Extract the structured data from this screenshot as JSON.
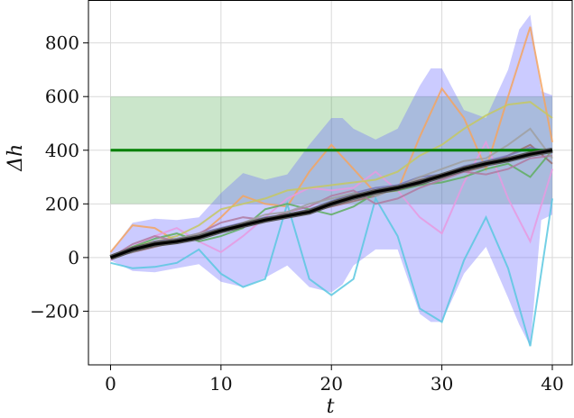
{
  "chart_data": {
    "type": "line",
    "xlabel": "t",
    "ylabel": "Δh",
    "xlim": [
      -2,
      41.8
    ],
    "ylim": [
      -400,
      960
    ],
    "x_ticks": [
      0,
      10,
      20,
      30,
      40
    ],
    "x_tick_labels": [
      "0",
      "10",
      "20",
      "30",
      "40"
    ],
    "y_ticks": [
      -200,
      0,
      200,
      400,
      600,
      800
    ],
    "y_tick_labels": [
      "−200",
      "0",
      "200",
      "400",
      "600",
      "800"
    ],
    "grid": true,
    "target_band": {
      "x": [
        0,
        40
      ],
      "y": [
        200,
        600
      ],
      "color": "#2e9a2e"
    },
    "target_line": {
      "x": [
        0,
        40
      ],
      "y": 400,
      "color": "#008000"
    },
    "mean_line": {
      "color": "#000000",
      "x": [
        0,
        2,
        4,
        6,
        8,
        10,
        12,
        14,
        16,
        18,
        20,
        22,
        24,
        26,
        28,
        30,
        32,
        34,
        36,
        38,
        40
      ],
      "y": [
        0,
        30,
        50,
        60,
        75,
        100,
        120,
        140,
        155,
        170,
        200,
        225,
        245,
        260,
        280,
        305,
        330,
        350,
        365,
        385,
        400
      ]
    },
    "confidence_band": {
      "color": "#6a6aff",
      "x": [
        0,
        2,
        4,
        6,
        8,
        10,
        12,
        14,
        16,
        18,
        20,
        21,
        22,
        24,
        26,
        28,
        29,
        30,
        32,
        34,
        36,
        37,
        38,
        39,
        40
      ],
      "upper": [
        20,
        130,
        145,
        140,
        150,
        240,
        315,
        290,
        310,
        420,
        520,
        520,
        480,
        440,
        480,
        640,
        705,
        705,
        550,
        520,
        700,
        850,
        905,
        620,
        605
      ],
      "lower": [
        -10,
        -50,
        -55,
        -40,
        -25,
        -90,
        -110,
        -75,
        -30,
        -110,
        -130,
        -100,
        -30,
        30,
        30,
        -210,
        -240,
        -240,
        -60,
        40,
        -150,
        -250,
        -330,
        140,
        160
      ]
    },
    "series": [
      {
        "color": "#f4a460",
        "x": [
          0,
          2,
          4,
          6,
          8,
          10,
          12,
          14,
          16,
          18,
          20,
          22,
          24,
          26,
          28,
          30,
          32,
          34,
          36,
          38,
          40
        ],
        "y": [
          20,
          120,
          110,
          60,
          80,
          150,
          230,
          200,
          190,
          320,
          420,
          330,
          240,
          250,
          450,
          630,
          520,
          330,
          600,
          860,
          430
        ]
      },
      {
        "color": "#5ac8e0",
        "x": [
          0,
          2,
          4,
          6,
          8,
          10,
          12,
          14,
          16,
          18,
          20,
          22,
          24,
          26,
          28,
          30,
          32,
          34,
          36,
          38,
          40
        ],
        "y": [
          -20,
          -40,
          -35,
          -20,
          30,
          -60,
          -110,
          -80,
          200,
          -80,
          -140,
          -80,
          220,
          80,
          -190,
          -240,
          -10,
          150,
          -40,
          -330,
          220
        ]
      },
      {
        "color": "#e89ae0",
        "x": [
          0,
          2,
          4,
          6,
          8,
          10,
          12,
          14,
          16,
          18,
          20,
          22,
          24,
          26,
          28,
          30,
          32,
          34,
          36,
          38,
          40
        ],
        "y": [
          -10,
          40,
          80,
          110,
          60,
          20,
          80,
          150,
          220,
          260,
          250,
          260,
          320,
          250,
          150,
          90,
          280,
          430,
          220,
          60,
          330
        ]
      },
      {
        "color": "#c5c862",
        "x": [
          0,
          2,
          4,
          6,
          8,
          10,
          12,
          14,
          16,
          18,
          20,
          22,
          24,
          26,
          28,
          30,
          32,
          34,
          36,
          38,
          40
        ],
        "y": [
          0,
          40,
          60,
          80,
          120,
          180,
          200,
          220,
          250,
          260,
          270,
          280,
          290,
          320,
          380,
          420,
          480,
          530,
          570,
          580,
          520
        ]
      },
      {
        "color": "#9a6f6f",
        "x": [
          0,
          2,
          4,
          6,
          8,
          10,
          12,
          14,
          16,
          18,
          20,
          22,
          24,
          26,
          28,
          30,
          32,
          34,
          36,
          38,
          40
        ],
        "y": [
          0,
          20,
          40,
          60,
          70,
          100,
          120,
          140,
          150,
          170,
          190,
          210,
          230,
          260,
          290,
          300,
          320,
          340,
          380,
          420,
          350
        ]
      },
      {
        "color": "#7a7ab8",
        "x": [
          0,
          2,
          4,
          6,
          8,
          10,
          12,
          14,
          16,
          18,
          20,
          22,
          24,
          26,
          28,
          30,
          32,
          34,
          36,
          38,
          40
        ],
        "y": [
          0,
          30,
          60,
          70,
          90,
          110,
          130,
          150,
          160,
          180,
          210,
          240,
          260,
          270,
          300,
          310,
          340,
          360,
          380,
          410,
          390
        ]
      },
      {
        "color": "#5fae5f",
        "x": [
          0,
          2,
          4,
          6,
          8,
          10,
          12,
          14,
          16,
          18,
          20,
          22,
          24,
          26,
          28,
          30,
          32,
          34,
          36,
          38,
          40
        ],
        "y": [
          0,
          40,
          70,
          90,
          60,
          80,
          110,
          180,
          200,
          180,
          160,
          190,
          240,
          250,
          270,
          280,
          300,
          330,
          350,
          300,
          400
        ]
      },
      {
        "color": "#b07aa1",
        "x": [
          0,
          2,
          4,
          6,
          8,
          10,
          12,
          14,
          16,
          18,
          20,
          22,
          24,
          26,
          28,
          30,
          32,
          34,
          36,
          38,
          40
        ],
        "y": [
          0,
          50,
          80,
          60,
          90,
          130,
          150,
          140,
          170,
          190,
          230,
          250,
          200,
          220,
          260,
          290,
          320,
          310,
          330,
          370,
          380
        ]
      },
      {
        "color": "#a0a0a0",
        "x": [
          0,
          2,
          4,
          6,
          8,
          10,
          12,
          14,
          16,
          18,
          20,
          22,
          24,
          26,
          28,
          30,
          32,
          34,
          36,
          38,
          40
        ],
        "y": [
          0,
          20,
          50,
          70,
          90,
          100,
          130,
          160,
          170,
          200,
          220,
          240,
          230,
          260,
          300,
          330,
          360,
          370,
          420,
          480,
          370
        ]
      }
    ]
  }
}
